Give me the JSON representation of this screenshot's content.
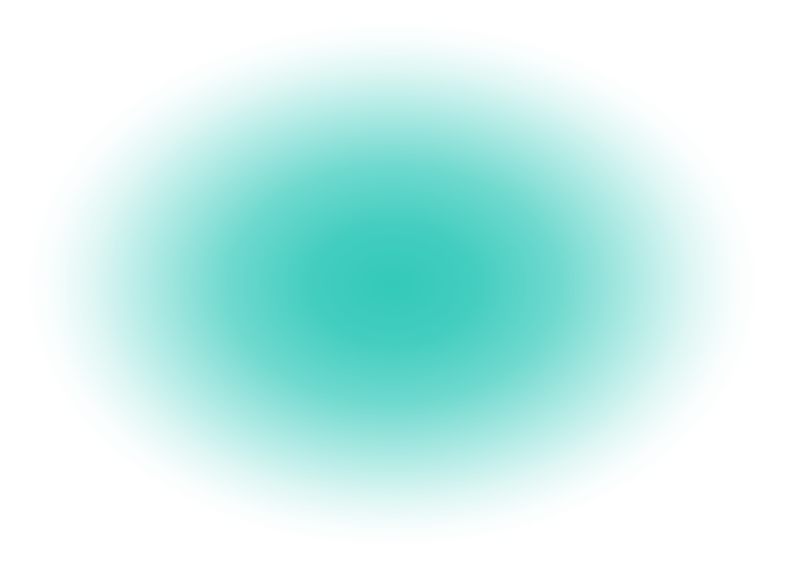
{
  "background": {
    "color": "#ffffff"
  },
  "glow": {
    "color": "#33C9BA"
  }
}
